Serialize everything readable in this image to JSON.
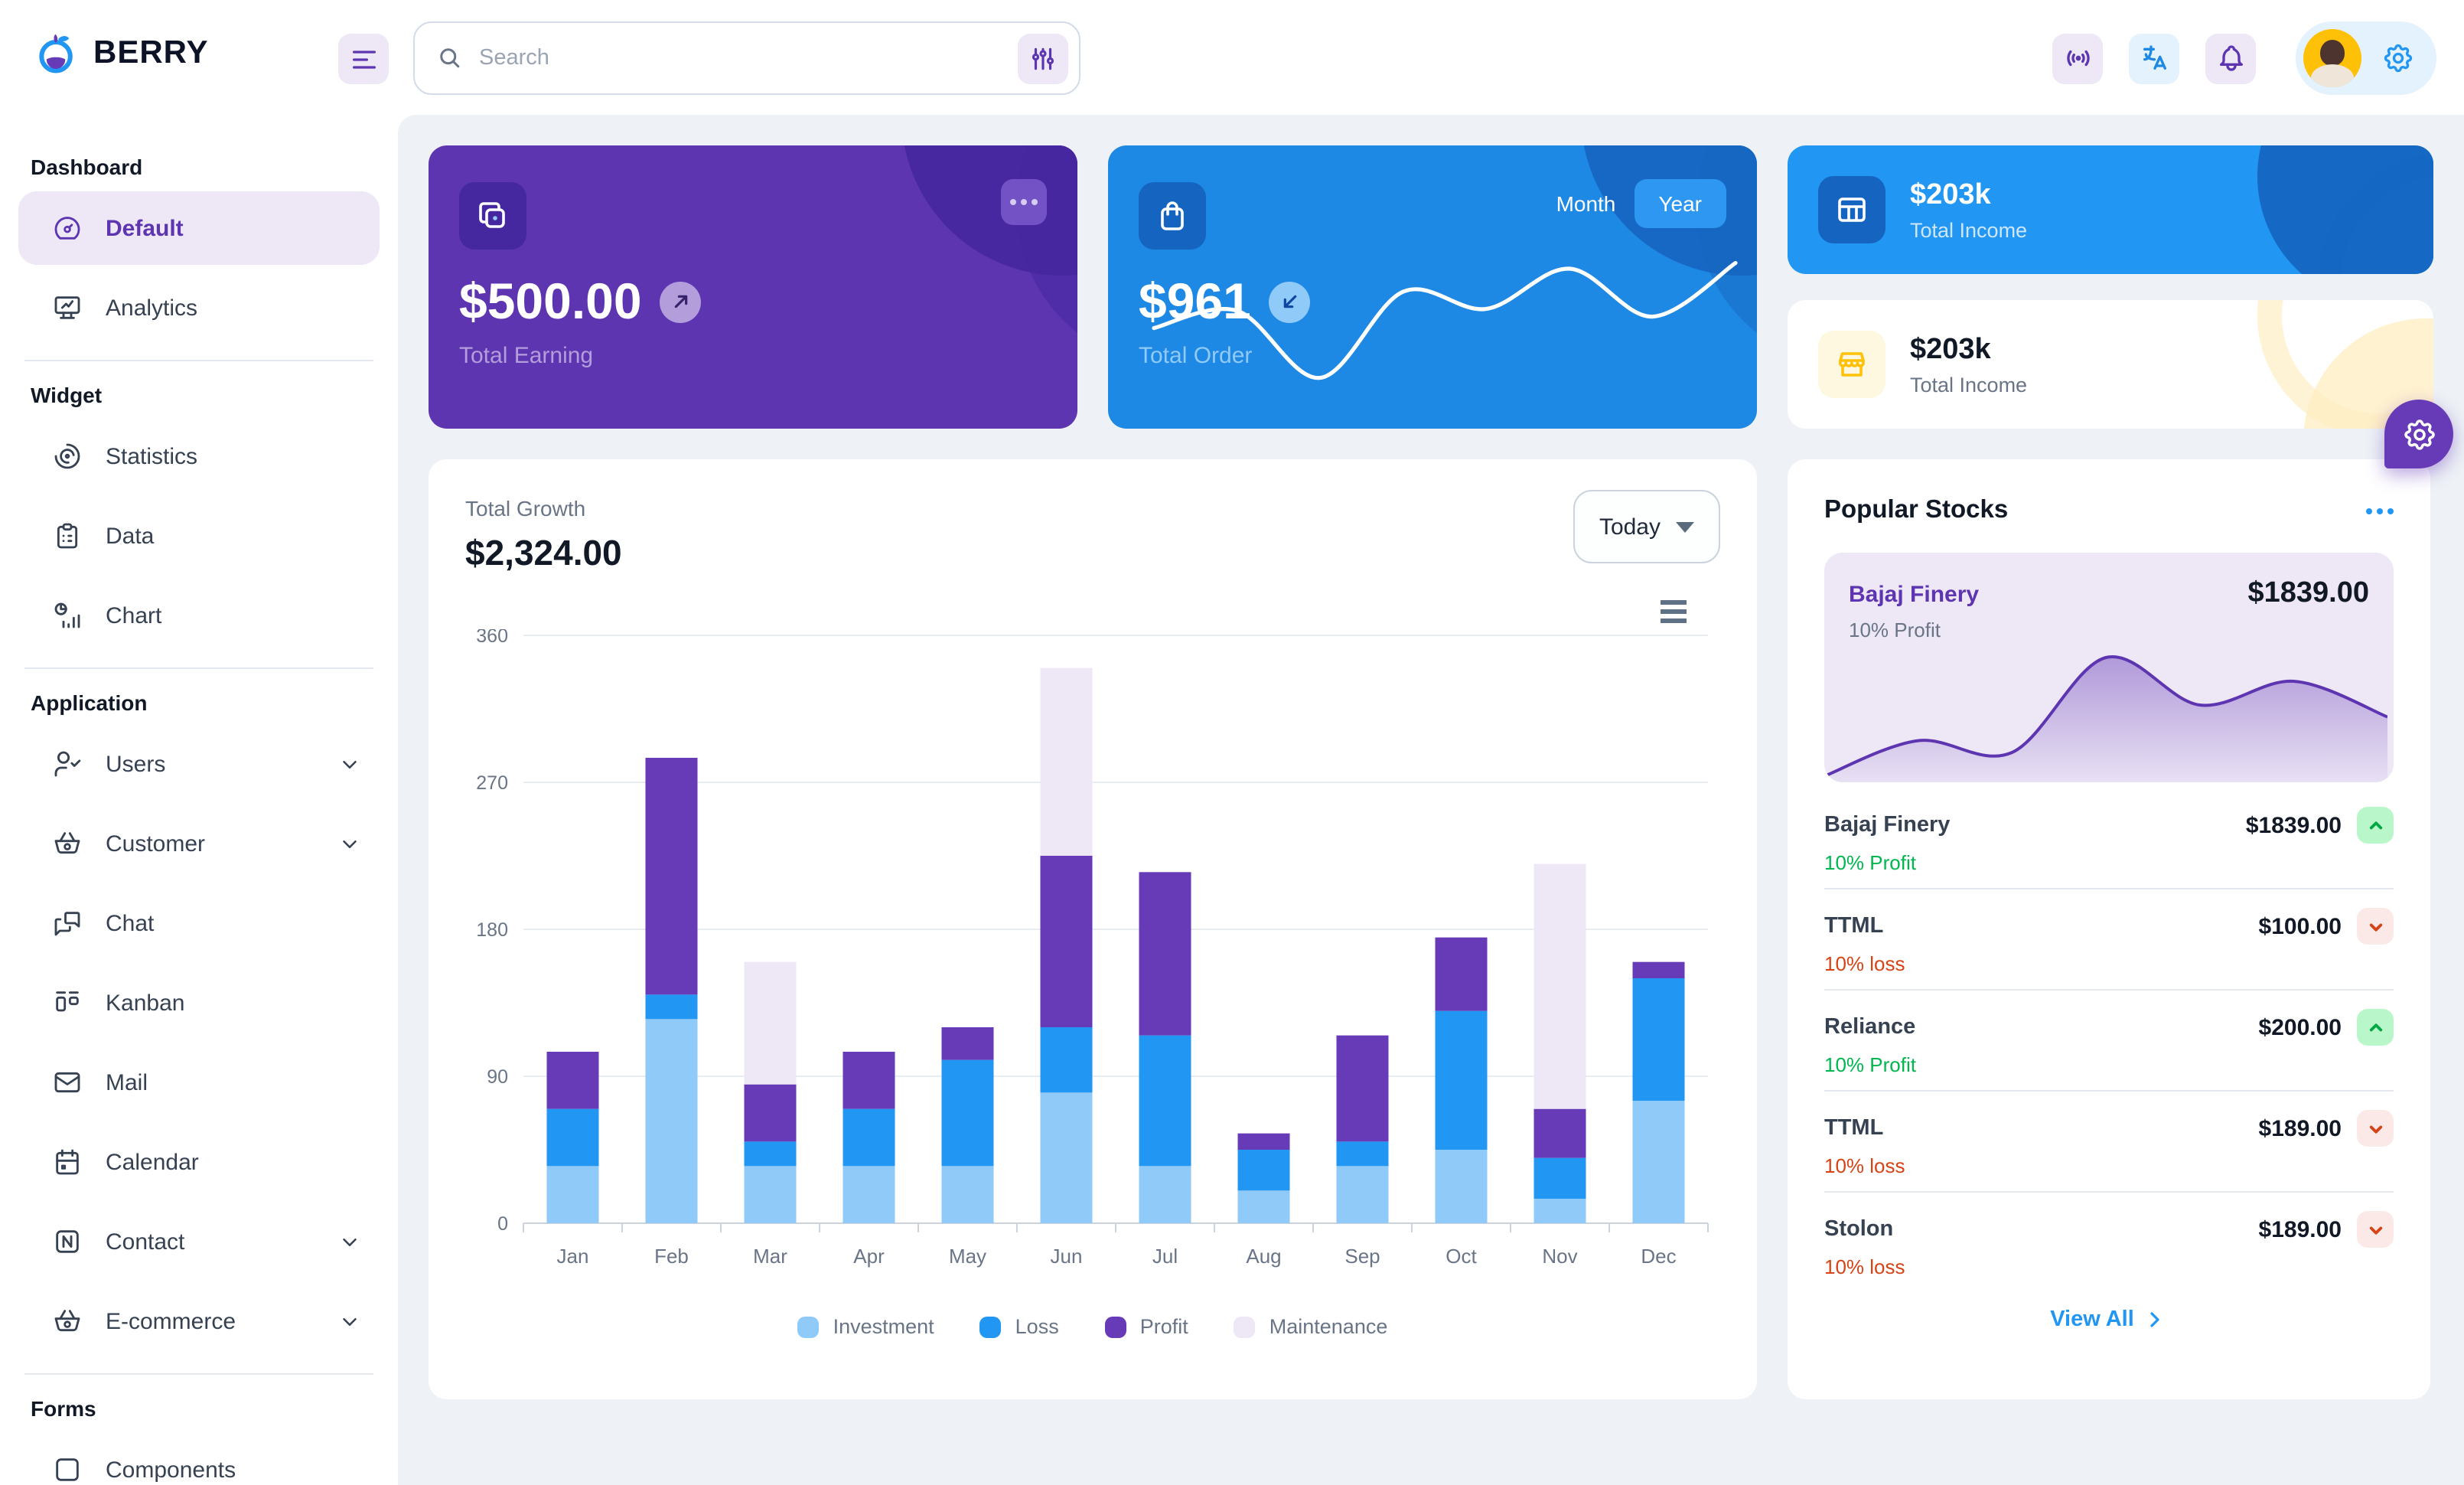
{
  "header": {
    "brand": "BERRY",
    "search": {
      "placeholder": "Search"
    }
  },
  "icons": {
    "brand": "berry-fruit-logo",
    "menu": "hamburger-three-lines",
    "search": "magnifier",
    "filter": "adjustments-sliders",
    "broadcast": "access-point-live",
    "translate": "language-characters",
    "notifications": "bell",
    "settings": "gear",
    "earning": "stacked-cards",
    "order": "shopping-bag",
    "income_blue": "table-grid",
    "income_light": "storefront",
    "trend_up": "chevron-up",
    "trend_down": "chevron-down",
    "more": "three-dots"
  },
  "sidebar": {
    "sections": [
      {
        "title": "Dashboard",
        "items": [
          {
            "label": "Default"
          },
          {
            "label": "Analytics"
          }
        ]
      },
      {
        "title": "Widget",
        "items": [
          {
            "label": "Statistics"
          },
          {
            "label": "Data"
          },
          {
            "label": "Chart"
          }
        ]
      },
      {
        "title": "Application",
        "items": [
          {
            "label": "Users"
          },
          {
            "label": "Customer"
          },
          {
            "label": "Chat"
          },
          {
            "label": "Kanban"
          },
          {
            "label": "Mail"
          },
          {
            "label": "Calendar"
          },
          {
            "label": "Contact"
          },
          {
            "label": "E-commerce"
          }
        ]
      },
      {
        "title": "Forms",
        "items": [
          {
            "label": "Components"
          }
        ]
      }
    ]
  },
  "cards": {
    "earning": {
      "amount": "$500.00",
      "label": "Total Earning"
    },
    "order": {
      "amount": "$961",
      "label": "Total Order",
      "toggle_month": "Month",
      "toggle_year": "Year",
      "selected": "Year"
    },
    "income_blue": {
      "amount": "$203k",
      "label": "Total Income"
    },
    "income_light": {
      "amount": "$203k",
      "label": "Total Income"
    }
  },
  "growth": {
    "label": "Total Growth",
    "amount": "$2,324.00",
    "period": "Today"
  },
  "chart_data": [
    {
      "type": "bar",
      "stacked": true,
      "title": "Total Growth",
      "categories": [
        "Jan",
        "Feb",
        "Mar",
        "Apr",
        "May",
        "Jun",
        "Jul",
        "Aug",
        "Sep",
        "Oct",
        "Nov",
        "Dec"
      ],
      "series": [
        {
          "name": "Investment",
          "color": "#90caf9",
          "values": [
            35,
            125,
            35,
            35,
            35,
            80,
            35,
            20,
            35,
            45,
            15,
            75
          ]
        },
        {
          "name": "Loss",
          "color": "#2196f3",
          "values": [
            35,
            15,
            15,
            35,
            65,
            40,
            80,
            25,
            15,
            85,
            25,
            75
          ]
        },
        {
          "name": "Profit",
          "color": "#673ab7",
          "values": [
            35,
            145,
            35,
            35,
            20,
            105,
            100,
            10,
            65,
            45,
            30,
            10
          ]
        },
        {
          "name": "Maintenance",
          "color": "#ede7f6",
          "values": [
            0,
            0,
            75,
            0,
            0,
            115,
            0,
            0,
            0,
            0,
            150,
            0
          ]
        }
      ],
      "xlabel": "",
      "ylabel": "",
      "ylim": [
        0,
        360
      ],
      "yticks": [
        0,
        90,
        180,
        270,
        360
      ],
      "grid": true,
      "legend_position": "bottom"
    },
    {
      "type": "line",
      "name": "total-order-sparkline",
      "color": "#ffffff",
      "values": [
        35,
        44,
        9,
        54,
        45,
        66,
        41,
        69
      ]
    },
    {
      "type": "area",
      "name": "bajaj-finery-trend",
      "color": "#5e35b1",
      "values": [
        0,
        15,
        10,
        50,
        30,
        40,
        25
      ]
    }
  ],
  "stocks": {
    "title": "Popular Stocks",
    "featured": {
      "name": "Bajaj Finery",
      "price": "$1839.00",
      "sub": "10% Profit"
    },
    "items": [
      {
        "name": "Bajaj Finery",
        "price": "$1839.00",
        "sub": "10% Profit",
        "direction": "up"
      },
      {
        "name": "TTML",
        "price": "$100.00",
        "sub": "10% loss",
        "direction": "down"
      },
      {
        "name": "Reliance",
        "price": "$200.00",
        "sub": "10% Profit",
        "direction": "up"
      },
      {
        "name": "TTML",
        "price": "$189.00",
        "sub": "10% loss",
        "direction": "down"
      },
      {
        "name": "Stolon",
        "price": "$189.00",
        "sub": "10% loss",
        "direction": "down"
      }
    ],
    "view_all": "View All"
  },
  "colors": {
    "page_bg": "#eef2f6",
    "purple_dark": "#5e35b1",
    "purple_800": "#4527a0",
    "purple_main": "#673ab7",
    "purple_light": "#ede7f6",
    "purple_200": "#b39ddb",
    "blue_main": "#2196f3",
    "blue_dark": "#1e88e5",
    "blue_800": "#1565c0",
    "blue_200": "#90caf9",
    "blue_light": "#e3f2fd",
    "warning_light": "#fff8e1",
    "warning_main": "#ffc107",
    "success_light": "#b9f6ca",
    "success_dark": "#00c853",
    "orange_light": "#fbe9e7",
    "orange_dark": "#d84315",
    "text_primary": "#364152",
    "text_secondary": "#697586",
    "heading": "#121926"
  }
}
